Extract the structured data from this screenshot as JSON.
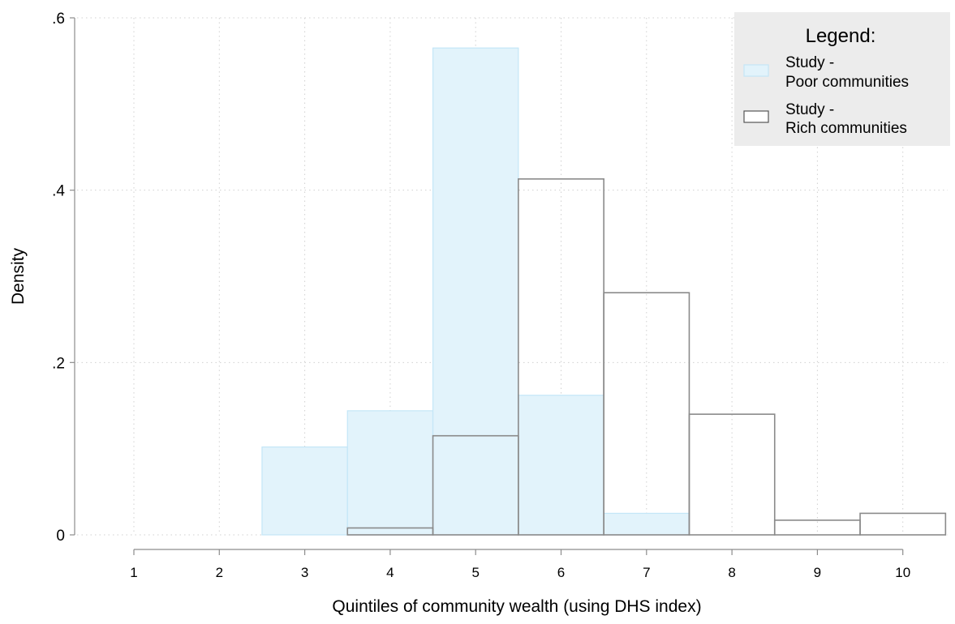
{
  "chart_data": {
    "type": "bar",
    "title": "",
    "xlabel": "Quintiles of community wealth (using DHS index)",
    "ylabel": "Density",
    "xlim": [
      0.5,
      10.5
    ],
    "ylim": [
      0,
      0.6
    ],
    "x_ticks": [
      1,
      2,
      3,
      4,
      5,
      6,
      7,
      8,
      9,
      10
    ],
    "x_tick_labels": [
      "1",
      "2",
      "3",
      "4",
      "5",
      "6",
      "7",
      "8",
      "9",
      "10"
    ],
    "y_ticks": [
      0,
      0.2,
      0.4,
      0.6
    ],
    "y_tick_labels": [
      "0",
      ".2",
      ".4",
      ".6"
    ],
    "grid": true,
    "legend_position": "top-right",
    "legend_title": "Legend:",
    "bin_width": 1,
    "series": [
      {
        "name_line1": "Study -",
        "name_line2": "Poor communities",
        "x": [
          3,
          4,
          5,
          6,
          7
        ],
        "values": [
          0.102,
          0.144,
          0.565,
          0.162,
          0.025
        ],
        "fill": "#e2f3fb",
        "stroke": "#c4e6f7"
      },
      {
        "name_line1": "Study -",
        "name_line2": "Rich communities",
        "x": [
          4,
          5,
          6,
          7,
          8,
          9,
          10
        ],
        "values": [
          0.008,
          0.115,
          0.413,
          0.281,
          0.14,
          0.017,
          0.025
        ],
        "fill": "none",
        "stroke": "#8a8a8a"
      }
    ],
    "colors": {
      "grid": "#d0d0d0",
      "axis": "#8c8c8c",
      "legend_bg": "#ececec"
    }
  }
}
